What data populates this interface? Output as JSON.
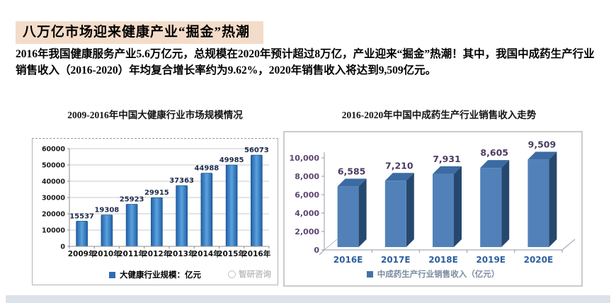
{
  "header": {
    "title": "八万亿市场迎来健康产业“掘金”热潮",
    "body": "2016年我国健康服务产业5.6万亿元，总规模在2020年预计超过8万亿，产业迎来“掘金”热潮！其中，我国中成药生产行业销售收入（2016-2020）年均复合增长率约为9.62%，2020年销售收入将达到9,509亿元。"
  },
  "watermark": "智研咨询",
  "colors": {
    "highlight_bg": "#f3dcc9",
    "left_bar_edge": "#1f5fa6",
    "left_bar_center": "#5ca2df",
    "right_bar_front": "#5181b8",
    "right_bar_side": "#27486e",
    "right_bar_top": "#3c6ba3",
    "right_axis_text": "#5c4670",
    "right_xlabel": "#2e5f9c",
    "legend_square_left": "#2e6cb5",
    "legend_square_right": "#4472a8",
    "bottom_strip": "#dbe2ea"
  },
  "chart_data": [
    {
      "type": "bar",
      "title": "2009-2016年中国大健康行业市场规模情况",
      "categories": [
        "2009年",
        "2010年",
        "2011年",
        "2012年",
        "2013年",
        "2014年",
        "2015年",
        "2016年"
      ],
      "values": [
        15537,
        19308,
        25923,
        29915,
        37363,
        44988,
        49985,
        56073
      ],
      "legend": "大健康行业规模：亿元",
      "xlabel": "",
      "ylabel": "",
      "ylim": [
        0,
        60000
      ],
      "yticks": [
        0,
        10000,
        20000,
        30000,
        40000,
        50000,
        60000
      ],
      "grid": true,
      "legend_position": "bottom"
    },
    {
      "type": "bar",
      "style": "3d",
      "title": "2016-2020年中国中成药生产行业销售收入走势",
      "categories": [
        "2016E",
        "2017E",
        "2018E",
        "2019E",
        "2020E"
      ],
      "values": [
        6585,
        7210,
        7931,
        8605,
        9509
      ],
      "value_labels": [
        "6,585",
        "7,210",
        "7,931",
        "8,605",
        "9,509"
      ],
      "legend": "中成药生产行业销售收入（亿元）",
      "xlabel": "",
      "ylabel": "",
      "ylim": [
        0,
        10000
      ],
      "ytick_labels": [
        "0",
        "2,000",
        "4,000",
        "6,000",
        "8,000",
        "10,000"
      ],
      "grid": false,
      "legend_position": "bottom"
    }
  ]
}
